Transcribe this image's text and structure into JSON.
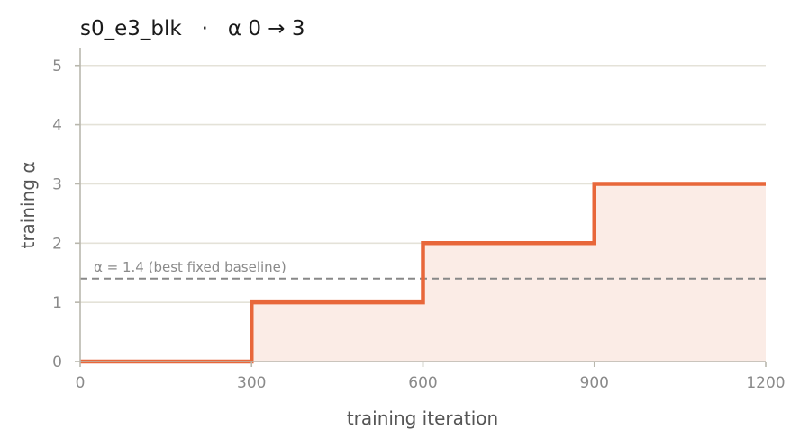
{
  "chart_data": {
    "type": "line",
    "title": "s0_e3_blk   ·   α 0 → 3",
    "xlabel": "training iteration",
    "ylabel": "training α",
    "xlim": [
      0,
      1200
    ],
    "ylim": [
      0,
      5.3
    ],
    "xticks": [
      0,
      300,
      600,
      900,
      1200
    ],
    "xtick_labels": [
      "0",
      "300",
      "600",
      "900",
      "1200"
    ],
    "yticks": [
      0,
      1,
      2,
      3,
      4,
      5
    ],
    "ytick_labels": [
      "0",
      "1",
      "2",
      "3",
      "4",
      "5"
    ],
    "grid": "horizontal",
    "series": [
      {
        "step": "post",
        "color": "#e8673a",
        "fill": "#fbece6",
        "x": [
          0,
          300,
          600,
          900,
          1200
        ],
        "y": [
          0,
          1,
          2,
          3,
          3
        ]
      }
    ],
    "reference_lines": [
      {
        "y": 1.4,
        "style": "dashed",
        "color": "#888888",
        "label": "α = 1.4 (best fixed baseline)"
      }
    ]
  }
}
